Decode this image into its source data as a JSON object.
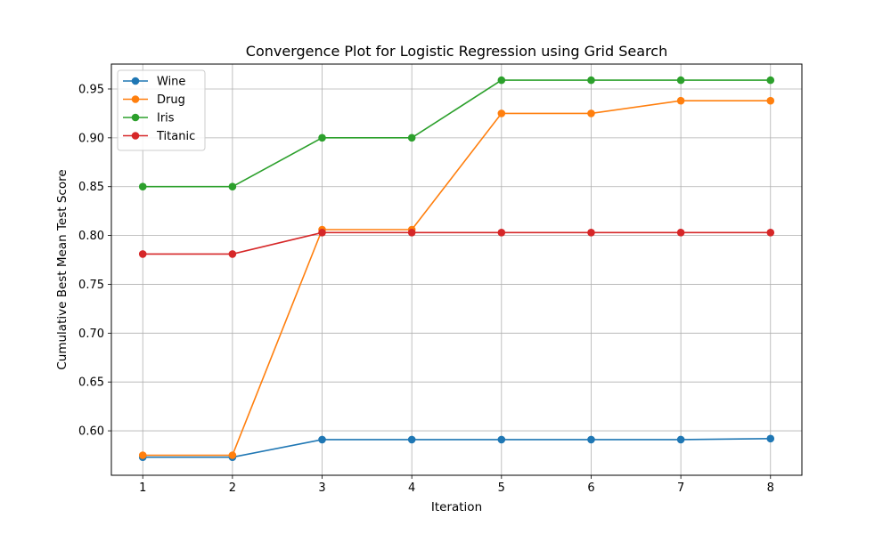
{
  "chart_data": {
    "type": "line",
    "title": "Convergence Plot for Logistic Regression using Grid Search",
    "xlabel": "Iteration",
    "ylabel": "Cumulative Best Mean Test Score",
    "x": [
      1,
      2,
      3,
      4,
      5,
      6,
      7,
      8
    ],
    "xticks": [
      "1",
      "2",
      "3",
      "4",
      "5",
      "6",
      "7",
      "8"
    ],
    "yticks": [
      "0.60",
      "0.65",
      "0.70",
      "0.75",
      "0.80",
      "0.85",
      "0.90",
      "0.95"
    ],
    "ytick_values": [
      0.6,
      0.65,
      0.7,
      0.75,
      0.8,
      0.85,
      0.9,
      0.95
    ],
    "xlim": [
      0.65,
      8.35
    ],
    "ylim": [
      0.5545,
      0.9755
    ],
    "grid": true,
    "legend_position": "top-left",
    "series": [
      {
        "name": "Wine",
        "color": "#1f77b4",
        "values": [
          0.573,
          0.573,
          0.591,
          0.591,
          0.591,
          0.591,
          0.591,
          0.592
        ]
      },
      {
        "name": "Drug",
        "color": "#ff7f0e",
        "values": [
          0.575,
          0.575,
          0.806,
          0.806,
          0.925,
          0.925,
          0.938,
          0.938
        ]
      },
      {
        "name": "Iris",
        "color": "#2ca02c",
        "values": [
          0.85,
          0.85,
          0.9,
          0.9,
          0.959,
          0.959,
          0.959,
          0.959
        ]
      },
      {
        "name": "Titanic",
        "color": "#d62728",
        "values": [
          0.781,
          0.781,
          0.803,
          0.803,
          0.803,
          0.803,
          0.803,
          0.803
        ]
      }
    ]
  }
}
